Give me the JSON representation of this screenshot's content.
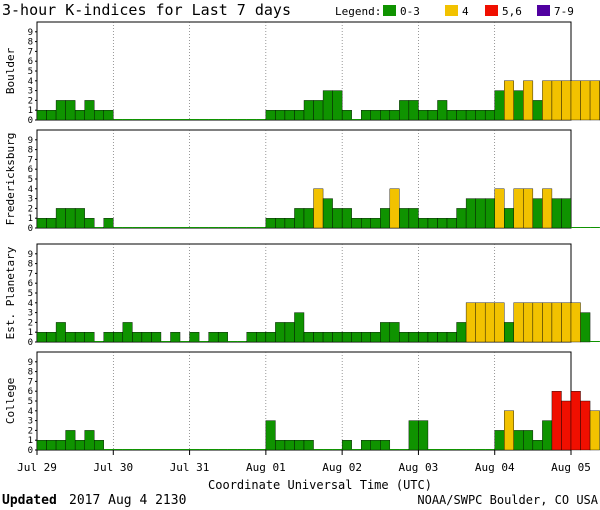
{
  "header": {
    "title": "3-hour K-indices for Last 7 days",
    "legend_label": "Legend:",
    "legend": [
      {
        "label": "0-3",
        "color": "#0f9300"
      },
      {
        "label": "4",
        "color": "#f2c200"
      },
      {
        "label": "5,6",
        "color": "#f00f00"
      },
      {
        "label": "7-9",
        "color": "#5000a0"
      }
    ]
  },
  "footer": {
    "updated_label": "Updated",
    "updated_time": "2017 Aug  4 2130",
    "source": "NOAA/SWPC Boulder, CO USA"
  },
  "chart_data": {
    "type": "bar",
    "xlabel": "Coordinate Universal Time (UTC)",
    "x_tick_labels": [
      "Jul 29",
      "Jul 30",
      "Jul 31",
      "Aug 01",
      "Aug 02",
      "Aug 03",
      "Aug 04",
      "Aug 05"
    ],
    "y_ticks": [
      0,
      1,
      2,
      3,
      4,
      5,
      6,
      7,
      8,
      9
    ],
    "ylim": [
      0,
      9
    ],
    "grid": false,
    "bar_interval_hours": 3,
    "color_scale": [
      {
        "range": "0-3",
        "color": "#0f9300"
      },
      {
        "range": "4",
        "color": "#f2c200"
      },
      {
        "range": "5,6",
        "color": "#f00f00"
      },
      {
        "range": "7-9",
        "color": "#5000a0"
      }
    ],
    "panels": [
      {
        "ylabel": "Boulder",
        "values": [
          1,
          1,
          2,
          2,
          1,
          2,
          1,
          1,
          0,
          0,
          0,
          0,
          0,
          0,
          0,
          0,
          0,
          0,
          0,
          0,
          0,
          0,
          0,
          0,
          1,
          1,
          1,
          1,
          2,
          2,
          3,
          3,
          1,
          0,
          1,
          1,
          1,
          1,
          2,
          2,
          1,
          1,
          2,
          1,
          1,
          1,
          1,
          1,
          3,
          4,
          3,
          4,
          2,
          4,
          4,
          4,
          4,
          4,
          4,
          4,
          3,
          0
        ]
      },
      {
        "ylabel": "Fredericksburg",
        "values": [
          1,
          1,
          2,
          2,
          2,
          1,
          0,
          1,
          0,
          0,
          0,
          0,
          0,
          0,
          0,
          0,
          0,
          0,
          0,
          0,
          0,
          0,
          0,
          0,
          1,
          1,
          1,
          2,
          2,
          4,
          3,
          2,
          2,
          1,
          1,
          1,
          2,
          4,
          2,
          2,
          1,
          1,
          1,
          1,
          2,
          3,
          3,
          3,
          4,
          2,
          4,
          4,
          3,
          4,
          3,
          3,
          0,
          0,
          0,
          0,
          0,
          0
        ]
      },
      {
        "ylabel": "Est. Planetary",
        "values": [
          1,
          1,
          2,
          1,
          1,
          1,
          0,
          1,
          1,
          2,
          1,
          1,
          1,
          0,
          1,
          0,
          1,
          0,
          1,
          1,
          0,
          0,
          1,
          1,
          1,
          2,
          2,
          3,
          1,
          1,
          1,
          1,
          1,
          1,
          1,
          1,
          2,
          2,
          1,
          1,
          1,
          1,
          1,
          1,
          2,
          4,
          4,
          4,
          4,
          2,
          4,
          4,
          4,
          4,
          4,
          4,
          4,
          3,
          0,
          0,
          0,
          0
        ]
      },
      {
        "ylabel": "College",
        "values": [
          1,
          1,
          1,
          2,
          1,
          2,
          1,
          0,
          0,
          0,
          0,
          0,
          0,
          0,
          0,
          0,
          0,
          0,
          0,
          0,
          0,
          0,
          0,
          0,
          3,
          1,
          1,
          1,
          1,
          0,
          0,
          0,
          1,
          0,
          1,
          1,
          1,
          0,
          0,
          3,
          3,
          0,
          0,
          0,
          0,
          0,
          0,
          0,
          2,
          4,
          2,
          2,
          1,
          3,
          6,
          5,
          6,
          5,
          4,
          0,
          0,
          0
        ]
      }
    ]
  }
}
